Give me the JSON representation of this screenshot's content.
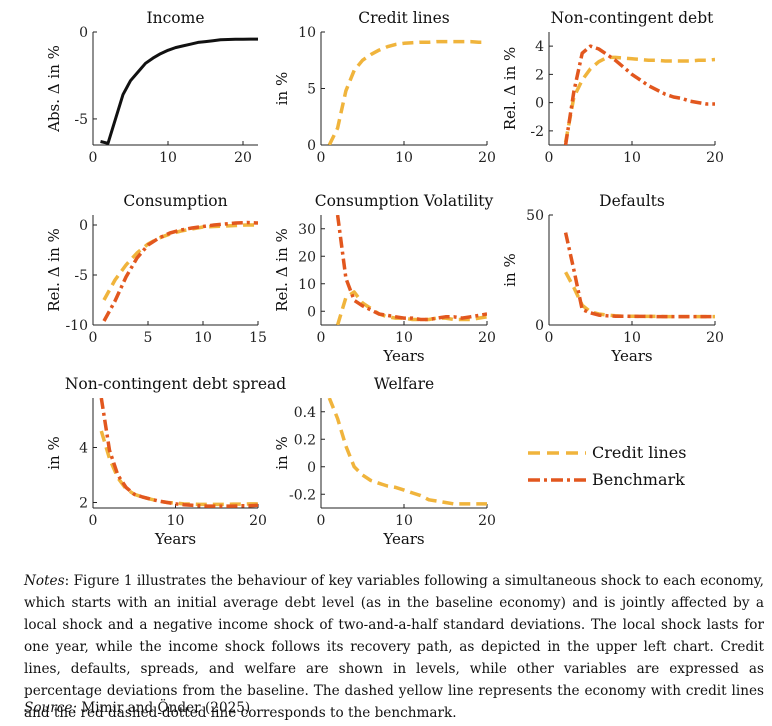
{
  "chart_data": [
    {
      "id": "income",
      "type": "line",
      "title": "Income",
      "ylabel": "Abs. Δ in %",
      "xlabel": "",
      "xlim": [
        0,
        22
      ],
      "ylim": [
        -6.5,
        0
      ],
      "xticks": [
        0,
        10,
        20
      ],
      "yticks": [
        -5,
        0
      ],
      "series": [
        {
          "name": "Benchmark",
          "style": "solid-black",
          "x": [
            1,
            2,
            3,
            4,
            5,
            6,
            7,
            8,
            9,
            10,
            11,
            12,
            13,
            14,
            15,
            16,
            17,
            18,
            19,
            20,
            21,
            22
          ],
          "y": [
            -6.3,
            -6.4,
            -5.0,
            -3.6,
            -2.8,
            -2.3,
            -1.8,
            -1.5,
            -1.25,
            -1.05,
            -0.9,
            -0.8,
            -0.7,
            -0.6,
            -0.55,
            -0.5,
            -0.45,
            -0.43,
            -0.42,
            -0.42,
            -0.41,
            -0.41
          ]
        }
      ]
    },
    {
      "id": "credit_lines",
      "type": "line",
      "title": "Credit lines",
      "ylabel": "in %",
      "xlabel": "",
      "xlim": [
        0,
        20
      ],
      "ylim": [
        0,
        10
      ],
      "xticks": [
        0,
        10,
        20
      ],
      "yticks": [
        0,
        5,
        10
      ],
      "series": [
        {
          "name": "Credit lines",
          "style": "dashed",
          "x": [
            1,
            2,
            3,
            4,
            5,
            6,
            7,
            8,
            9,
            10,
            11,
            12,
            13,
            14,
            15,
            16,
            17,
            18,
            19,
            20
          ],
          "y": [
            0,
            1.5,
            4.8,
            6.6,
            7.5,
            8.0,
            8.4,
            8.7,
            8.9,
            9.0,
            9.05,
            9.1,
            9.1,
            9.15,
            9.15,
            9.15,
            9.15,
            9.15,
            9.1,
            9.1
          ]
        }
      ]
    },
    {
      "id": "noncontingent_debt",
      "type": "line",
      "title": "Non-contingent debt",
      "ylabel": "Rel. Δ in %",
      "xlabel": "",
      "xlim": [
        0,
        20
      ],
      "ylim": [
        -3,
        5
      ],
      "xticks": [
        0,
        10,
        20
      ],
      "yticks": [
        -2,
        0,
        2,
        4
      ],
      "series": [
        {
          "name": "Credit lines",
          "style": "dashed",
          "x": [
            2,
            3,
            4,
            5,
            6,
            7,
            8,
            9,
            10,
            11,
            12,
            13,
            14,
            15,
            16,
            17,
            18,
            19,
            20
          ],
          "y": [
            -2.8,
            0.4,
            1.6,
            2.4,
            2.9,
            3.2,
            3.2,
            3.15,
            3.1,
            3.05,
            3.0,
            3.0,
            2.95,
            2.95,
            2.95,
            2.95,
            3.0,
            3.0,
            3.05
          ]
        },
        {
          "name": "Benchmark",
          "style": "dashdot",
          "x": [
            2,
            3,
            4,
            5,
            6,
            7,
            8,
            9,
            10,
            11,
            12,
            13,
            14,
            15,
            16,
            17,
            18,
            19,
            20
          ],
          "y": [
            -3.0,
            0.8,
            3.5,
            4.0,
            3.8,
            3.4,
            3.0,
            2.5,
            2.0,
            1.6,
            1.2,
            0.9,
            0.6,
            0.4,
            0.3,
            0.1,
            0.0,
            -0.1,
            -0.1
          ]
        }
      ]
    },
    {
      "id": "consumption",
      "type": "line",
      "title": "Consumption",
      "ylabel": "Rel. Δ in %",
      "xlabel": "",
      "xlim": [
        0,
        15
      ],
      "ylim": [
        -10,
        1
      ],
      "xticks": [
        0,
        5,
        10,
        15
      ],
      "yticks": [
        -10,
        -5,
        0
      ],
      "series": [
        {
          "name": "Credit lines",
          "style": "dashed",
          "x": [
            1,
            2,
            3,
            4,
            5,
            6,
            7,
            8,
            9,
            10,
            11,
            12,
            13,
            14,
            15
          ],
          "y": [
            -7.5,
            -5.5,
            -4.0,
            -2.8,
            -1.9,
            -1.3,
            -0.9,
            -0.6,
            -0.4,
            -0.2,
            -0.15,
            -0.1,
            -0.05,
            0.0,
            0.0
          ]
        },
        {
          "name": "Benchmark",
          "style": "dashdot",
          "x": [
            1,
            2,
            3,
            4,
            5,
            6,
            7,
            8,
            9,
            10,
            11,
            12,
            13,
            14,
            15
          ],
          "y": [
            -9.6,
            -7.6,
            -5.2,
            -3.3,
            -2.0,
            -1.3,
            -0.8,
            -0.5,
            -0.3,
            -0.15,
            0.0,
            0.1,
            0.2,
            0.25,
            0.2
          ]
        }
      ]
    },
    {
      "id": "consumption_volatility",
      "type": "line",
      "title": "Consumption Volatility",
      "ylabel": "Rel. Δ in %",
      "xlabel": "Years",
      "xlim": [
        0,
        20
      ],
      "ylim": [
        -5,
        35
      ],
      "xticks": [
        0,
        10,
        20
      ],
      "yticks": [
        0,
        10,
        20,
        30
      ],
      "series": [
        {
          "name": "Credit lines",
          "style": "dashed",
          "x": [
            2,
            3,
            4,
            5,
            6,
            7,
            8,
            9,
            10,
            11,
            12,
            13,
            14,
            15,
            16,
            17,
            18,
            19,
            20
          ],
          "y": [
            -5,
            5,
            7,
            3,
            1,
            -1,
            -2,
            -2.5,
            -2.5,
            -3,
            -3,
            -3,
            -2.5,
            -2.5,
            -3,
            -3,
            -3,
            -2.5,
            -2
          ]
        },
        {
          "name": "Benchmark",
          "style": "dashdot",
          "x": [
            2,
            3,
            4,
            5,
            6,
            7,
            8,
            9,
            10,
            11,
            12,
            13,
            14,
            15,
            16,
            17,
            18,
            19,
            20
          ],
          "y": [
            35,
            12,
            4,
            2,
            0.5,
            -1,
            -1.5,
            -2,
            -2.5,
            -2.5,
            -3,
            -3,
            -2.5,
            -2,
            -2,
            -2.5,
            -2,
            -1.5,
            -1
          ]
        }
      ]
    },
    {
      "id": "defaults",
      "type": "line",
      "title": "Defaults",
      "ylabel": "in %",
      "xlabel": "Years",
      "xlim": [
        0,
        20
      ],
      "ylim": [
        0,
        50
      ],
      "xticks": [
        0,
        10,
        20
      ],
      "yticks": [
        0,
        50
      ],
      "series": [
        {
          "name": "Credit lines",
          "style": "dashed",
          "x": [
            2,
            3,
            4,
            5,
            6,
            7,
            8,
            9,
            10,
            11,
            12,
            13,
            14,
            15,
            16,
            17,
            18,
            19,
            20
          ],
          "y": [
            24,
            17,
            9,
            6,
            5,
            4.5,
            4.2,
            4.0,
            4.0,
            3.9,
            3.9,
            3.9,
            3.8,
            3.8,
            3.8,
            3.8,
            3.8,
            3.8,
            3.8
          ]
        },
        {
          "name": "Benchmark",
          "style": "dashdot",
          "x": [
            2,
            3,
            4,
            5,
            6,
            7,
            8,
            9,
            10,
            11,
            12,
            13,
            14,
            15,
            16,
            17,
            18,
            19,
            20
          ],
          "y": [
            42,
            25,
            7,
            5.5,
            4.5,
            4.2,
            4.0,
            4.0,
            3.9,
            3.9,
            3.9,
            3.8,
            3.8,
            3.8,
            3.8,
            3.8,
            3.8,
            3.8,
            3.8
          ]
        }
      ]
    },
    {
      "id": "debt_spread",
      "type": "line",
      "title": "Non-contingent debt spread",
      "ylabel": "in %",
      "xlabel": "Years",
      "xlim": [
        0,
        20
      ],
      "ylim": [
        1.8,
        5.8
      ],
      "xticks": [
        0,
        10,
        20
      ],
      "yticks": [
        2,
        4
      ],
      "series": [
        {
          "name": "Credit lines",
          "style": "dashed",
          "x": [
            1,
            2,
            3,
            4,
            5,
            6,
            7,
            8,
            9,
            10,
            11,
            12,
            13,
            14,
            15,
            16,
            17,
            18,
            19,
            20
          ],
          "y": [
            4.6,
            3.6,
            2.9,
            2.5,
            2.3,
            2.2,
            2.12,
            2.05,
            2.0,
            1.98,
            1.95,
            1.94,
            1.93,
            1.93,
            1.93,
            1.93,
            1.94,
            1.94,
            1.95,
            1.95
          ]
        },
        {
          "name": "Benchmark",
          "style": "dashdot",
          "x": [
            1,
            2,
            3,
            4,
            5,
            6,
            7,
            8,
            9,
            10,
            11,
            12,
            13,
            14,
            15,
            16,
            17,
            18,
            19,
            20
          ],
          "y": [
            5.8,
            3.9,
            3.0,
            2.55,
            2.3,
            2.2,
            2.12,
            2.05,
            2.0,
            1.95,
            1.92,
            1.9,
            1.88,
            1.87,
            1.87,
            1.87,
            1.87,
            1.88,
            1.88,
            1.9
          ]
        }
      ]
    },
    {
      "id": "welfare",
      "type": "line",
      "title": "Welfare",
      "ylabel": "in %",
      "xlabel": "Years",
      "xlim": [
        0,
        20
      ],
      "ylim": [
        -0.3,
        0.5
      ],
      "xticks": [
        0,
        10,
        20
      ],
      "yticks": [
        -0.2,
        0,
        0.2,
        0.4
      ],
      "series": [
        {
          "name": "Credit lines",
          "style": "dashed",
          "x": [
            1,
            2,
            3,
            4,
            5,
            6,
            7,
            8,
            9,
            10,
            11,
            12,
            13,
            14,
            15,
            16,
            17,
            18,
            19,
            20
          ],
          "y": [
            0.5,
            0.35,
            0.15,
            0.0,
            -0.06,
            -0.1,
            -0.12,
            -0.14,
            -0.15,
            -0.17,
            -0.19,
            -0.21,
            -0.24,
            -0.25,
            -0.26,
            -0.27,
            -0.27,
            -0.27,
            -0.27,
            -0.27
          ]
        }
      ]
    }
  ],
  "legend": {
    "items": [
      {
        "label": "Credit lines",
        "style": "dashed"
      },
      {
        "label": "Benchmark",
        "style": "dashdot"
      }
    ]
  },
  "colors": {
    "credit_lines": "#f0b43c",
    "benchmark": "#e2571e",
    "income": "#111111"
  },
  "notes": {
    "prefix": "Notes",
    "text": ": Figure 1 illustrates the behaviour of key variables following a simultaneous shock to each economy, which starts with an initial average debt level (as in the baseline economy) and is jointly affected by a local shock and a negative income shock of two-and-a-half standard deviations. The local shock lasts for one year, while the income shock follows its recovery path, as depicted in the upper left chart. Credit lines, defaults, spreads, and welfare are shown in levels, while other variables are expressed as percentage deviations from the baseline. The dashed yellow line represents the economy with credit lines and the red dashed-dotted line corresponds to the benchmark."
  },
  "source": {
    "prefix": "Source:",
    "text": " Mimir and Önder (2025)"
  }
}
